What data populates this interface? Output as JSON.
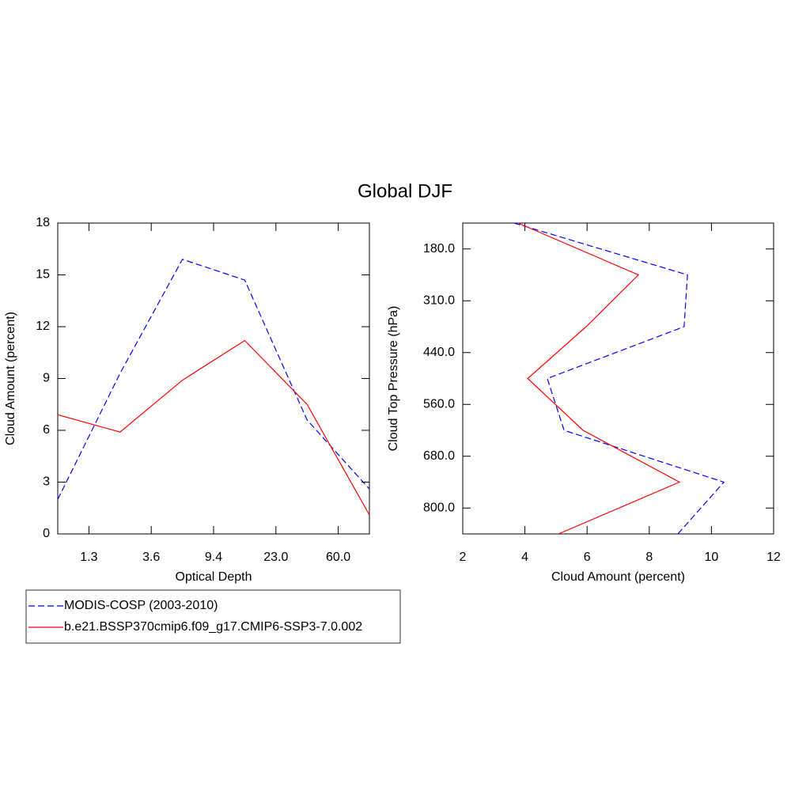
{
  "title": "Global DJF",
  "chart_data": [
    {
      "type": "line",
      "xlabel": "Optical Depth",
      "ylabel": "Cloud Amount (percent)",
      "x": [
        0,
        1,
        2,
        3,
        4,
        5
      ],
      "xlim": [
        0,
        5
      ],
      "xticks": [
        {
          "value": 0.5,
          "label": "1.3"
        },
        {
          "value": 1.5,
          "label": "3.6"
        },
        {
          "value": 2.5,
          "label": "9.4"
        },
        {
          "value": 3.5,
          "label": "23.0"
        },
        {
          "value": 4.5,
          "label": "60.0"
        }
      ],
      "ylim": [
        0,
        18
      ],
      "yticks": [
        0,
        3,
        6,
        9,
        12,
        15,
        18
      ],
      "series": [
        {
          "name": "MODIS-COSP (2003-2010)",
          "color": "#0000ff",
          "dashed": true,
          "values": [
            2.0,
            9.3,
            15.9,
            14.7,
            6.6,
            2.6
          ]
        },
        {
          "name": "b.e21.BSSP370cmip6.f09_g17.CMIP6-SSP3-7.0.002",
          "color": "#ff0000",
          "dashed": false,
          "values": [
            6.9,
            5.9,
            8.9,
            11.2,
            7.5,
            1.1
          ]
        }
      ]
    },
    {
      "type": "line",
      "orientation": "horizontal",
      "xlabel": "Cloud Amount (percent)",
      "ylabel": "Cloud Top Pressure (hPa)",
      "xlim": [
        2,
        12
      ],
      "xticks": [
        2,
        4,
        6,
        8,
        10,
        12
      ],
      "y": [
        0,
        1,
        2,
        3,
        4,
        5,
        6
      ],
      "ylim": [
        0,
        6
      ],
      "y_reversed": true,
      "yticks": [
        {
          "value": 0.5,
          "label": "180.0"
        },
        {
          "value": 1.5,
          "label": "310.0"
        },
        {
          "value": 2.5,
          "label": "440.0"
        },
        {
          "value": 3.5,
          "label": "560.0"
        },
        {
          "value": 4.5,
          "label": "680.0"
        },
        {
          "value": 5.5,
          "label": "800.0"
        }
      ],
      "series": [
        {
          "color": "#0000ff",
          "dashed": true,
          "values": [
            3.65,
            9.23,
            9.12,
            4.72,
            5.26,
            10.4,
            8.92
          ]
        },
        {
          "color": "#ff0000",
          "dashed": false,
          "values": [
            3.78,
            7.65,
            5.97,
            4.09,
            5.87,
            8.97,
            5.08
          ]
        }
      ]
    }
  ]
}
